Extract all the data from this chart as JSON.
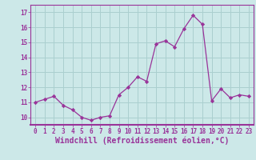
{
  "x": [
    0,
    1,
    2,
    3,
    4,
    5,
    6,
    7,
    8,
    9,
    10,
    11,
    12,
    13,
    14,
    15,
    16,
    17,
    18,
    19,
    20,
    21,
    22,
    23
  ],
  "y": [
    11.0,
    11.2,
    11.4,
    10.8,
    10.5,
    10.0,
    9.8,
    10.0,
    10.1,
    11.5,
    12.0,
    12.7,
    12.4,
    14.9,
    15.1,
    14.7,
    15.9,
    16.8,
    16.2,
    11.1,
    11.9,
    11.3,
    11.5,
    11.4
  ],
  "line_color": "#993399",
  "marker_color": "#993399",
  "bg_color": "#cce8e8",
  "grid_color": "#aacfcf",
  "xlabel": "Windchill (Refroidissement éolien,°C)",
  "xlabel_color": "#993399",
  "ylim": [
    9.5,
    17.5
  ],
  "xlim": [
    -0.5,
    23.5
  ],
  "yticks": [
    10,
    11,
    12,
    13,
    14,
    15,
    16,
    17
  ],
  "xtick_labels": [
    "0",
    "1",
    "2",
    "3",
    "4",
    "5",
    "6",
    "7",
    "8",
    "9",
    "10",
    "11",
    "12",
    "13",
    "14",
    "15",
    "16",
    "17",
    "18",
    "19",
    "20",
    "21",
    "22",
    "23"
  ],
  "tick_color": "#993399",
  "tick_fontsize": 5.5,
  "xlabel_fontsize": 7.0,
  "linewidth": 0.9,
  "markersize": 2.2
}
